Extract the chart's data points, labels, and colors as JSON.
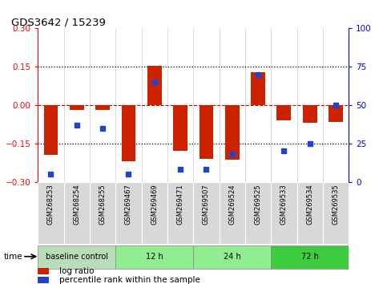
{
  "title": "GDS3642 / 15239",
  "samples": [
    "GSM268253",
    "GSM268254",
    "GSM268255",
    "GSM269467",
    "GSM269469",
    "GSM269471",
    "GSM269507",
    "GSM269524",
    "GSM269525",
    "GSM269533",
    "GSM269534",
    "GSM269535"
  ],
  "log_ratio": [
    -0.195,
    -0.02,
    -0.02,
    -0.22,
    0.155,
    -0.18,
    -0.21,
    -0.215,
    0.128,
    -0.06,
    -0.07,
    -0.065
  ],
  "percentile_rank": [
    5,
    37,
    35,
    5,
    65,
    8,
    8,
    18,
    70,
    20,
    25,
    50
  ],
  "groups": [
    {
      "label": "baseline control",
      "start": 0,
      "end": 3,
      "color": "#b8ddb8"
    },
    {
      "label": "12 h",
      "start": 3,
      "end": 6,
      "color": "#90ee90"
    },
    {
      "label": "24 h",
      "start": 6,
      "end": 9,
      "color": "#90ee90"
    },
    {
      "label": "72 h",
      "start": 9,
      "end": 12,
      "color": "#3dcc3d"
    }
  ],
  "bar_color": "#cc2200",
  "dot_color": "#2244cc",
  "ylim_left": [
    -0.3,
    0.3
  ],
  "ylim_right": [
    0,
    100
  ],
  "yticks_left": [
    -0.3,
    -0.15,
    0,
    0.15,
    0.3
  ],
  "yticks_right": [
    0,
    25,
    50,
    75,
    100
  ],
  "hlines_dotted": [
    -0.15,
    0.15
  ],
  "hline_dashed": 0,
  "bar_width": 0.55,
  "dot_size": 5,
  "sample_box_color": "#d8d8d8",
  "legend_bar_color": "#cc2200",
  "legend_dot_color": "#2244cc",
  "legend_log_ratio": "log ratio",
  "legend_pct": "percentile rank within the sample",
  "time_label": "time"
}
